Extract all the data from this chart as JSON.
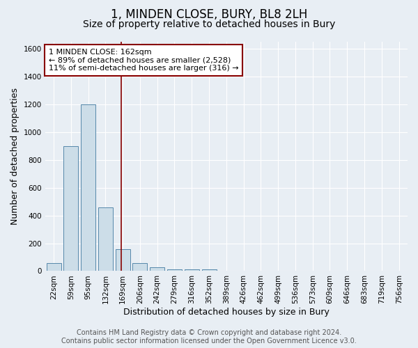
{
  "title": "1, MINDEN CLOSE, BURY, BL8 2LH",
  "subtitle": "Size of property relative to detached houses in Bury",
  "xlabel": "Distribution of detached houses by size in Bury",
  "ylabel": "Number of detached properties",
  "footer_line1": "Contains HM Land Registry data © Crown copyright and database right 2024.",
  "footer_line2": "Contains public sector information licensed under the Open Government Licence v3.0.",
  "annotation_line1": "1 MINDEN CLOSE: 162sqm",
  "annotation_line2": "← 89% of detached houses are smaller (2,528)",
  "annotation_line3": "11% of semi-detached houses are larger (316) →",
  "property_size_sqm": 162,
  "bar_color": "#ccdde8",
  "bar_edge_color": "#5588aa",
  "redline_color": "#880000",
  "categories": [
    "22sqm",
    "59sqm",
    "95sqm",
    "132sqm",
    "169sqm",
    "206sqm",
    "242sqm",
    "279sqm",
    "316sqm",
    "352sqm",
    "389sqm",
    "426sqm",
    "462sqm",
    "499sqm",
    "536sqm",
    "573sqm",
    "609sqm",
    "646sqm",
    "683sqm",
    "719sqm",
    "756sqm"
  ],
  "values": [
    55,
    900,
    1200,
    460,
    160,
    55,
    25,
    10,
    10,
    10,
    0,
    0,
    0,
    0,
    0,
    0,
    0,
    0,
    0,
    0,
    0
  ],
  "ylim": [
    0,
    1650
  ],
  "yticks": [
    0,
    200,
    400,
    600,
    800,
    1000,
    1200,
    1400,
    1600
  ],
  "background_color": "#e8eef4",
  "plot_bg_color": "#e8eef4",
  "grid_color": "#ffffff",
  "title_fontsize": 12,
  "subtitle_fontsize": 10,
  "axis_label_fontsize": 9,
  "tick_fontsize": 7.5,
  "footer_fontsize": 7,
  "annotation_fontsize": 8,
  "red_line_x": 3.92
}
